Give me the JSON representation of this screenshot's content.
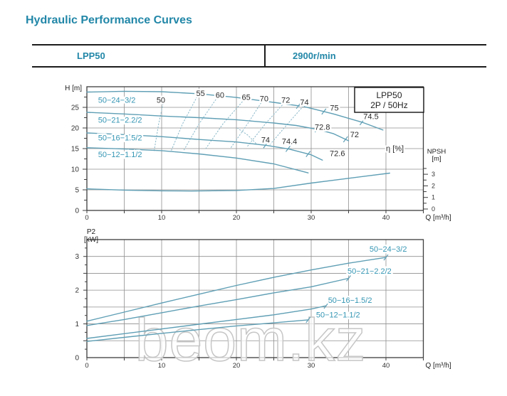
{
  "page": {
    "title": "Hydraulic Performance Curves"
  },
  "header": {
    "model": "LPP50",
    "speed": "2900r/min"
  },
  "watermark": "beom.kz",
  "colors": {
    "accent_teal": "#2287a8",
    "curve": "#5f9fb5",
    "contour": "#8ab8c8",
    "grid": "#8f8f8f",
    "frame": "#3d3d3d",
    "label_dark": "#2b2b2b",
    "watermark_stroke": "#c6c6c6"
  },
  "chart_data": [
    {
      "type": "line",
      "title": "H-Q performance curves",
      "legend_box": [
        "LPP50",
        "2P / 50Hz"
      ],
      "xlabel": "Q [m³/h]",
      "ylabel": "H [m]",
      "xlim": [
        0,
        45
      ],
      "ylim": [
        0,
        30
      ],
      "x_grid_step": 5,
      "y_grid_step": 5,
      "x_tick_labels": [
        0,
        10,
        20,
        30,
        40
      ],
      "y_tick_labels": [
        0,
        5,
        10,
        15,
        20,
        25
      ],
      "eta_label": "η [%]",
      "eta_label_pos": {
        "q": 41.2,
        "h": 15
      },
      "right_axis": {
        "title": [
          "NPSH",
          "[m]"
        ],
        "lim": [
          0,
          3.5
        ],
        "tick_labels": [
          0,
          1,
          2,
          3
        ]
      },
      "series": [
        {
          "name": "50−24−3/2",
          "label_pos": [
            1.5,
            26.7
          ],
          "points": [
            [
              0,
              28.7
            ],
            [
              5,
              28.9
            ],
            [
              10,
              28.8
            ],
            [
              15,
              28.3
            ],
            [
              20,
              27.4
            ],
            [
              25,
              26.2
            ],
            [
              29,
              25.2
            ],
            [
              33,
              23.4
            ],
            [
              36.8,
              21.4
            ],
            [
              39.6,
              19.5
            ]
          ],
          "tick_q": [
            28.3,
            31.7,
            36.8
          ]
        },
        {
          "name": "50−21−2.2/2",
          "label_pos": [
            1.5,
            21.9
          ],
          "points": [
            [
              0,
              23.8
            ],
            [
              5,
              23.4
            ],
            [
              10,
              22.9
            ],
            [
              15,
              22.5
            ],
            [
              20,
              22.0
            ],
            [
              25,
              21.2
            ],
            [
              28,
              20.6
            ],
            [
              31,
              19.6
            ],
            [
              33,
              18.6
            ],
            [
              35,
              16.9
            ]
          ],
          "tick_q": [
            30.8,
            34.6
          ]
        },
        {
          "name": "50−16−1.5/2",
          "label_pos": [
            1.5,
            17.6
          ],
          "points": [
            [
              0,
              18.8
            ],
            [
              5,
              18.4
            ],
            [
              10,
              17.9
            ],
            [
              15,
              17.2
            ],
            [
              20,
              16.6
            ],
            [
              24,
              15.8
            ],
            [
              27,
              14.9
            ],
            [
              30,
              13.5
            ],
            [
              31.5,
              12.2
            ]
          ],
          "tick_q": [
            23.9,
            26.9,
            29.6
          ]
        },
        {
          "name": "50−12−1.1/2",
          "label_pos": [
            1.5,
            13.5
          ],
          "points": [
            [
              0,
              15.2
            ],
            [
              5,
              14.9
            ],
            [
              10,
              14.5
            ],
            [
              15,
              13.7
            ],
            [
              20,
              12.7
            ],
            [
              25,
              11.3
            ],
            [
              29.6,
              9.1
            ]
          ],
          "tick_q": []
        }
      ],
      "npsh_series": {
        "name": "NPSH",
        "points": [
          [
            0,
            1.74
          ],
          [
            5,
            1.63
          ],
          [
            10,
            1.57
          ],
          [
            14,
            1.55
          ],
          [
            20,
            1.6
          ],
          [
            25,
            1.77
          ],
          [
            30,
            2.24
          ],
          [
            35,
            2.65
          ],
          [
            40.5,
            3.1
          ]
        ]
      },
      "efficiency_contours": [
        {
          "label": "50",
          "points": [
            [
              9.0,
              14.5
            ],
            [
              9.6,
              21.0
            ],
            [
              10.4,
              27.6
            ]
          ]
        },
        {
          "label": "55",
          "points": [
            [
              11.3,
              14.6
            ],
            [
              12.8,
              21.0
            ],
            [
              14.8,
              27.8
            ]
          ]
        },
        {
          "label": "60",
          "points": [
            [
              13.0,
              14.7
            ],
            [
              15.0,
              21.0
            ],
            [
              17.4,
              27.3
            ]
          ]
        },
        {
          "label": "65",
          "points": [
            [
              15.9,
              15.0
            ],
            [
              18.2,
              21.0
            ],
            [
              21.0,
              26.8
            ]
          ]
        },
        {
          "label": "70",
          "points": [
            [
              19.3,
              15.3
            ],
            [
              21.6,
              21.3
            ],
            [
              23.4,
              26.4
            ]
          ]
        },
        {
          "label": "72",
          "points": [
            [
              21.5,
              15.6
            ],
            [
              24.0,
              21.3
            ],
            [
              26.3,
              25.9
            ]
          ]
        },
        {
          "label": "74",
          "points": [
            [
              24.5,
              16.0
            ],
            [
              27.0,
              21.3
            ],
            [
              28.9,
              25.2
            ]
          ]
        },
        {
          "label": "74-close",
          "points": [
            [
              20.1,
              20.0
            ],
            [
              21.5,
              18.3
            ],
            [
              22.7,
              16.1
            ]
          ]
        }
      ],
      "efficiency_labels": [
        {
          "text": "50",
          "q": 9.9,
          "h": 26.7
        },
        {
          "text": "55",
          "q": 15.2,
          "h": 28.4
        },
        {
          "text": "60",
          "q": 17.8,
          "h": 27.9
        },
        {
          "text": "65",
          "q": 21.3,
          "h": 27.4
        },
        {
          "text": "70",
          "q": 23.7,
          "h": 27.1
        },
        {
          "text": "72",
          "q": 26.6,
          "h": 26.7
        },
        {
          "text": "74",
          "q": 29.1,
          "h": 26.2
        },
        {
          "text": "75",
          "q": 33.1,
          "h": 24.8
        },
        {
          "text": "74.5",
          "q": 38.0,
          "h": 22.8
        },
        {
          "text": "72.8",
          "q": 31.5,
          "h": 20.2
        },
        {
          "text": "72",
          "q": 35.8,
          "h": 18.4
        },
        {
          "text": "74",
          "q": 23.9,
          "h": 17.1
        },
        {
          "text": "74.4",
          "q": 27.1,
          "h": 16.7
        },
        {
          "text": "72.6",
          "q": 33.5,
          "h": 13.8
        }
      ]
    },
    {
      "type": "line",
      "title": "P2-Q power curves",
      "xlabel": "Q [m³/h]",
      "ylabel": [
        "P2",
        "[kW]"
      ],
      "xlim": [
        0,
        45
      ],
      "ylim": [
        0,
        3.5
      ],
      "x_grid_step": 5,
      "y_grid_step": 0.5,
      "x_tick_labels": [
        0,
        10,
        20,
        30,
        40
      ],
      "y_tick_labels": [
        0,
        1,
        2,
        3
      ],
      "series": [
        {
          "name": "50−24−3/2",
          "label_pos": [
            40.3,
            3.22
          ],
          "points": [
            [
              0,
              1.08
            ],
            [
              5,
              1.35
            ],
            [
              10,
              1.62
            ],
            [
              15,
              1.88
            ],
            [
              20,
              2.14
            ],
            [
              25,
              2.38
            ],
            [
              30,
              2.6
            ],
            [
              35,
              2.8
            ],
            [
              40,
              2.97
            ]
          ]
        },
        {
          "name": "50−21−2.2/2",
          "label_pos": [
            37.8,
            2.56
          ],
          "points": [
            [
              0,
              0.95
            ],
            [
              5,
              1.13
            ],
            [
              10,
              1.33
            ],
            [
              15,
              1.53
            ],
            [
              20,
              1.72
            ],
            [
              25,
              1.92
            ],
            [
              30,
              2.1
            ],
            [
              35,
              2.35
            ]
          ]
        },
        {
          "name": "50−16−1.5/2",
          "label_pos": [
            35.2,
            1.7
          ],
          "points": [
            [
              0,
              0.57
            ],
            [
              5,
              0.71
            ],
            [
              10,
              0.85
            ],
            [
              15,
              0.99
            ],
            [
              20,
              1.13
            ],
            [
              25,
              1.27
            ],
            [
              30,
              1.44
            ],
            [
              32,
              1.54
            ]
          ]
        },
        {
          "name": "50−12−1.1/2",
          "label_pos": [
            33.6,
            1.26
          ],
          "points": [
            [
              0,
              0.48
            ],
            [
              5,
              0.6
            ],
            [
              10,
              0.72
            ],
            [
              15,
              0.83
            ],
            [
              20,
              0.94
            ],
            [
              25,
              1.03
            ],
            [
              29.6,
              1.12
            ]
          ]
        }
      ]
    }
  ]
}
